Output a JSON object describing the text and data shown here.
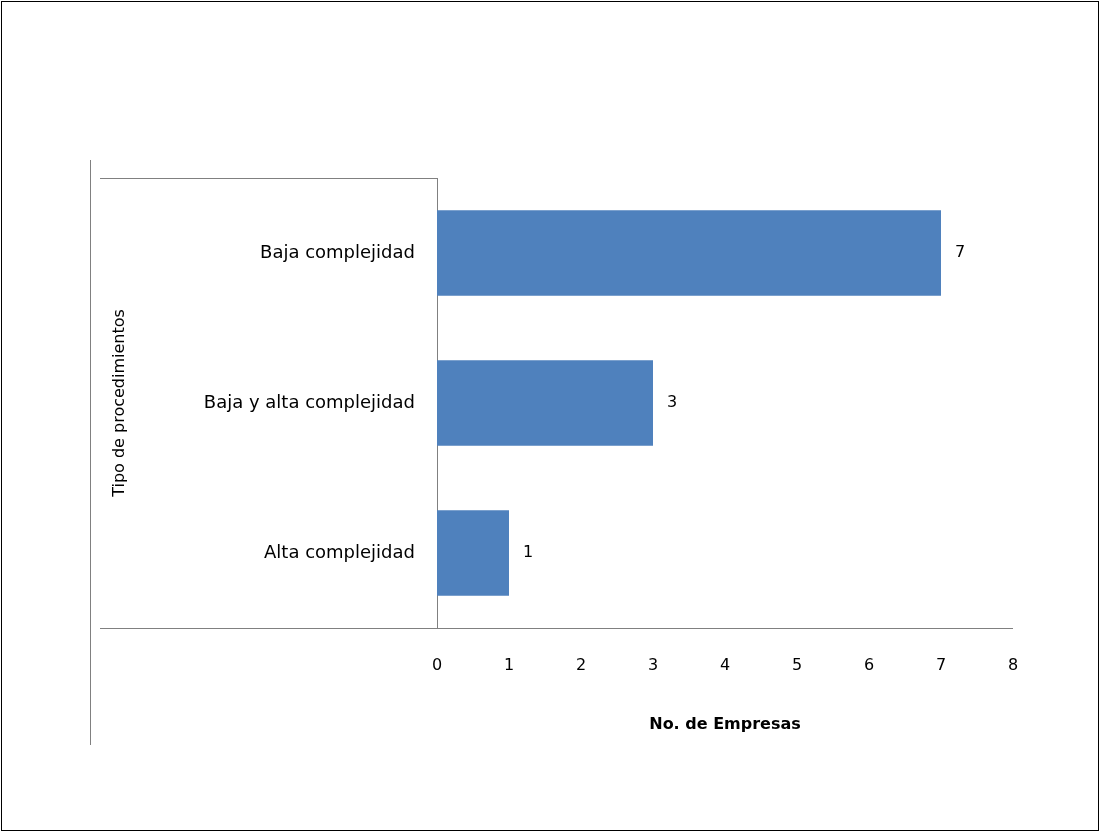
{
  "chart_data": {
    "type": "bar",
    "orientation": "horizontal",
    "categories": [
      "Baja complejidad",
      "Baja y alta complejidad",
      "Alta complejidad"
    ],
    "values": [
      7,
      3,
      1
    ],
    "color": "#4f81bd",
    "xlim": [
      0,
      8
    ],
    "xticks": [
      0,
      1,
      2,
      3,
      4,
      5,
      6,
      7,
      8
    ],
    "xlabel": "No. de Empresas",
    "ylabel": "Tipo de procedimientos",
    "data_labels": true,
    "grid": false,
    "legend": false
  }
}
